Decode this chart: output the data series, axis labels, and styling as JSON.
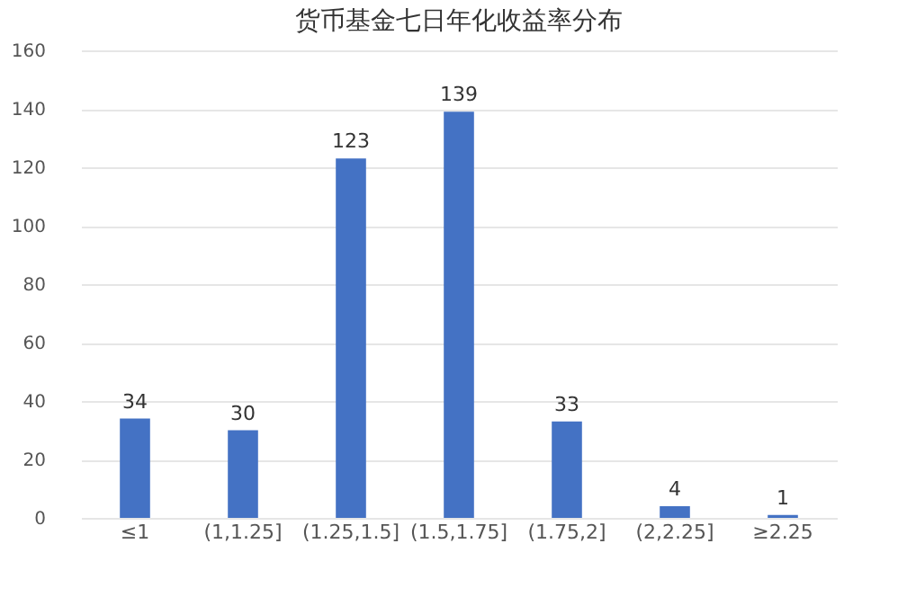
{
  "chart_data": {
    "type": "bar",
    "title": "货币基金七日年化收益率分布",
    "categories": [
      "≤1",
      "(1,1.25]",
      "(1.25,1.5]",
      "(1.5,1.75]",
      "(1.75,2]",
      "(2,2.25]",
      "≥2.25"
    ],
    "values": [
      34,
      30,
      123,
      139,
      33,
      4,
      1
    ],
    "color": "#4472c4",
    "ylim": [
      0,
      160
    ],
    "yticks": [
      0,
      20,
      40,
      60,
      80,
      100,
      120,
      140,
      160
    ],
    "grid": "y",
    "data_labels": true
  }
}
